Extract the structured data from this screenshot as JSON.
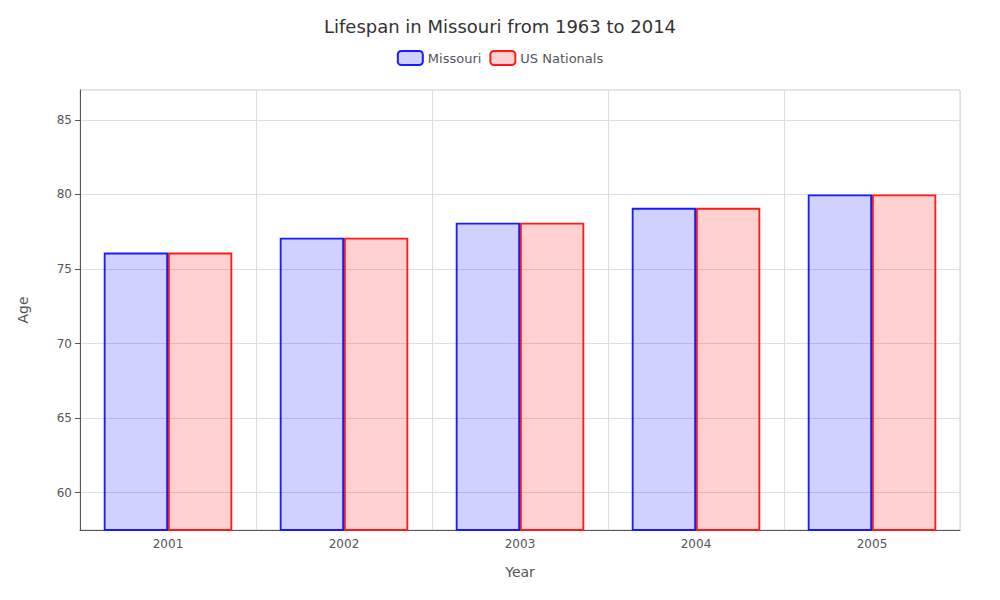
{
  "chart_data": {
    "type": "bar",
    "title": "Lifespan in Missouri from 1963 to 2014",
    "xlabel": "Year",
    "ylabel": "Age",
    "categories": [
      "2001",
      "2002",
      "2003",
      "2004",
      "2005"
    ],
    "series": [
      {
        "name": "Missouri",
        "color": "#1a1aff",
        "values": [
          76.1,
          77.1,
          78.1,
          79.1,
          80.0
        ]
      },
      {
        "name": "US Nationals",
        "color": "#ff1a1a",
        "values": [
          76.1,
          77.1,
          78.1,
          79.1,
          80.0
        ]
      }
    ],
    "ylim": [
      57.5,
      87
    ],
    "yticks": [
      60,
      65,
      70,
      75,
      80,
      85
    ],
    "grid": true,
    "legend": "top"
  }
}
